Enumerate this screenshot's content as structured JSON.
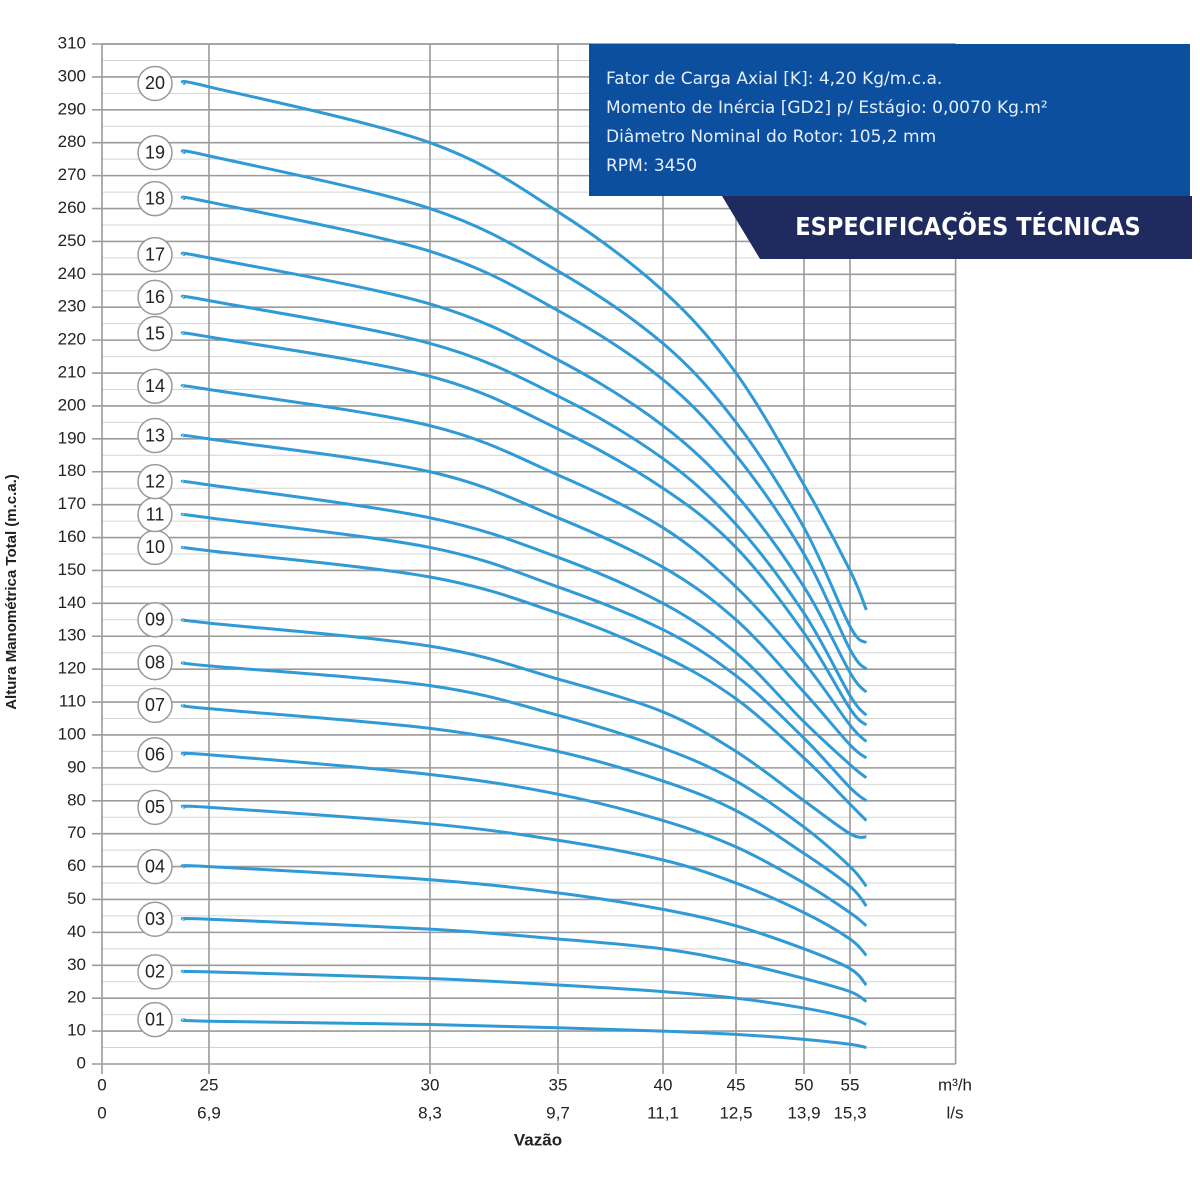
{
  "chart_data": {
    "type": "line",
    "ylabel": "Altura Manométrica Total (m.c.a.)",
    "xlabel": "Vazão",
    "x_unit": "m³/h",
    "x2_unit": "l/s",
    "xlim": [
      0,
      66
    ],
    "xticks": [
      0,
      25,
      30,
      35,
      40,
      45,
      50,
      55
    ],
    "x2tick_labels": [
      "0",
      "6,9",
      "8,3",
      "9,7",
      "11,1",
      "12,5",
      "13,9",
      "15,3"
    ],
    "ylim": [
      0,
      310
    ],
    "yticks": [
      0,
      10,
      20,
      30,
      40,
      50,
      60,
      70,
      80,
      90,
      100,
      110,
      120,
      130,
      140,
      150,
      160,
      170,
      180,
      190,
      200,
      210,
      220,
      230,
      240,
      250,
      260,
      270,
      280,
      290,
      300,
      310
    ],
    "grid": true,
    "color": "#2f9ad6",
    "x": [
      19,
      25,
      30,
      35,
      40,
      45,
      50,
      55,
      56.7
    ],
    "series": [
      {
        "name": "01",
        "values": [
          13.5,
          13,
          12,
          11,
          10,
          9,
          7.5,
          6,
          5
        ]
      },
      {
        "name": "02",
        "values": [
          28,
          28,
          26,
          24,
          22,
          20,
          17,
          14,
          12
        ]
      },
      {
        "name": "03",
        "values": [
          44,
          44,
          41,
          38,
          35,
          31,
          26,
          22,
          19
        ]
      },
      {
        "name": "04",
        "values": [
          60,
          60,
          56,
          52,
          47,
          42,
          35,
          29,
          24
        ]
      },
      {
        "name": "05",
        "values": [
          78,
          78,
          73,
          68,
          62,
          55,
          46,
          38,
          33
        ]
      },
      {
        "name": "06",
        "values": [
          94,
          94,
          88,
          82,
          74,
          66,
          55,
          46,
          42
        ]
      },
      {
        "name": "07",
        "values": [
          109,
          108,
          102,
          95,
          86,
          77,
          64,
          54,
          48
        ]
      },
      {
        "name": "08",
        "values": [
          122,
          121,
          115,
          106,
          96,
          86,
          72,
          60,
          54
        ]
      },
      {
        "name": "09",
        "values": [
          135,
          134,
          127,
          117,
          107,
          95,
          80,
          70,
          69
        ]
      },
      {
        "name": "10",
        "values": [
          157,
          156,
          148,
          137,
          124,
          111,
          93,
          79,
          74
        ]
      },
      {
        "name": "11",
        "values": [
          167,
          166,
          157,
          145,
          132,
          118,
          99,
          84,
          80
        ]
      },
      {
        "name": "12",
        "values": [
          177,
          176,
          166,
          154,
          140,
          125,
          104,
          91,
          87
        ]
      },
      {
        "name": "13",
        "values": [
          191,
          190,
          180,
          166,
          151,
          135,
          113,
          97,
          93
        ]
      },
      {
        "name": "14",
        "values": [
          206,
          205,
          194,
          179,
          163,
          145,
          122,
          103,
          98
        ]
      },
      {
        "name": "15",
        "values": [
          222,
          221,
          209,
          193,
          175,
          157,
          131,
          108,
          103
        ]
      },
      {
        "name": "16",
        "values": [
          233,
          232,
          219,
          203,
          184,
          164,
          137,
          112,
          106
        ]
      },
      {
        "name": "17",
        "values": [
          246,
          245,
          231,
          214,
          194,
          173,
          145,
          119,
          113
        ]
      },
      {
        "name": "18",
        "values": [
          263,
          262,
          247,
          229,
          208,
          185,
          155,
          126,
          120
        ]
      },
      {
        "name": "19",
        "values": [
          277,
          276,
          260,
          241,
          219,
          195,
          163,
          133,
          128
        ]
      },
      {
        "name": "20",
        "values": [
          298,
          297,
          280,
          259,
          235,
          210,
          176,
          150,
          138
        ]
      }
    ],
    "specs": {
      "lines": [
        "Fator de Carga Axial [K]: 4,20 Kg/m.c.a.",
        "Momento de Inércia [GD2] p/ Estágio: 0,0070 Kg.m²",
        "Diâmetro Nominal do Rotor: 105,2 mm",
        "RPM: 3450"
      ],
      "title": "ESPECIFICAÇÕES TÉCNICAS"
    }
  }
}
